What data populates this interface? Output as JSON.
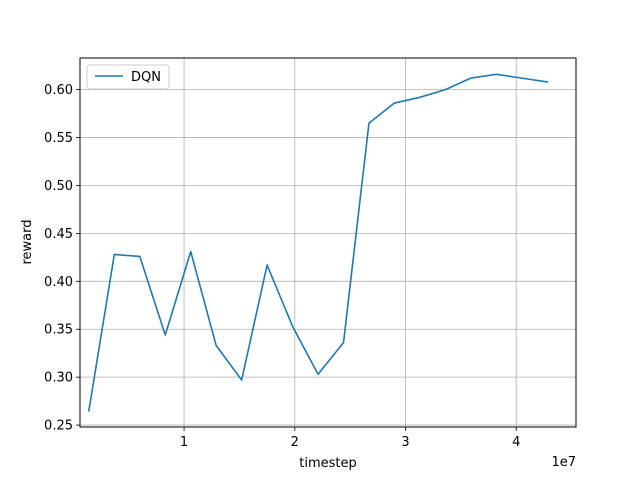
{
  "chart_data": {
    "type": "line",
    "title": "",
    "xlabel": "timestep",
    "ylabel": "reward",
    "x_offset_label": "1e7",
    "xlim": [
      0.06,
      4.54
    ],
    "ylim": [
      0.248,
      0.633
    ],
    "xticks": [
      1,
      2,
      3,
      4
    ],
    "yticks": [
      0.25,
      0.3,
      0.35,
      0.4,
      0.45,
      0.5,
      0.55,
      0.6
    ],
    "grid": true,
    "legend_position": "top-left",
    "series": [
      {
        "name": "DQN",
        "color": "#1f77b4",
        "x": [
          0.14,
          0.37,
          0.6,
          0.83,
          1.06,
          1.29,
          1.52,
          1.75,
          1.98,
          2.21,
          2.44,
          2.67,
          2.9,
          3.13,
          3.36,
          3.59,
          3.82,
          4.05,
          4.28
        ],
        "y": [
          0.265,
          0.428,
          0.426,
          0.344,
          0.431,
          0.333,
          0.297,
          0.417,
          0.353,
          0.303,
          0.336,
          0.565,
          0.586,
          0.592,
          0.6,
          0.612,
          0.616,
          0.612,
          0.608
        ]
      }
    ]
  }
}
